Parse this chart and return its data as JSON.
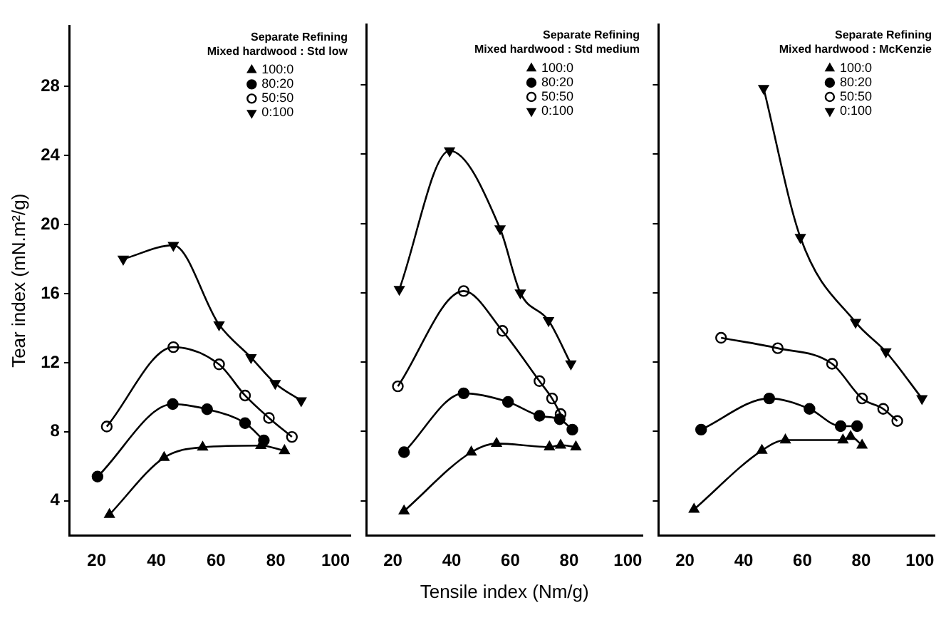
{
  "chart_data": [
    {
      "type": "line",
      "ylabel": "Tear index (mN.m²/g)",
      "legend_title": "Separate Refining\nMixed hardwood : Std low",
      "xlim": [
        11,
        105
      ],
      "xticks": [
        20,
        40,
        60,
        80,
        100
      ],
      "ylim": [
        2,
        31.5
      ],
      "yticks": [
        4,
        8,
        12,
        16,
        20,
        24,
        28
      ],
      "grid": false,
      "legend": "top right",
      "series": [
        {
          "name": "100:0",
          "color": "#000000",
          "marker": "triangle",
          "x": [
            24.3,
            42.6,
            55.5,
            75,
            82.9
          ],
          "values": [
            3.2,
            6.5,
            7.1,
            7.2,
            6.9
          ]
        },
        {
          "name": "80:20",
          "color": "#000000",
          "marker": "circle",
          "x": [
            20.3,
            45.5,
            57,
            69.7,
            76
          ],
          "values": [
            5.4,
            9.6,
            9.3,
            8.5,
            7.5
          ]
        },
        {
          "name": "50:50",
          "color": "#000000",
          "marker": "circle_open",
          "x": [
            23.4,
            45.7,
            61,
            69.7,
            77.7,
            85.4
          ],
          "values": [
            8.3,
            12.9,
            11.9,
            10.1,
            8.8,
            7.7
          ]
        },
        {
          "name": "0:100",
          "color": "#000000",
          "marker": "triangle_down",
          "x": [
            28.9,
            45.7,
            61,
            71.7,
            79.8,
            88.5
          ],
          "values": [
            18.0,
            18.8,
            14.2,
            12.3,
            10.8,
            9.8
          ]
        }
      ]
    },
    {
      "type": "line",
      "xlabel": "Tensile index (Nm/g)",
      "legend_title": "Separate Refining\nMixed hardwood : Std medium",
      "xlim": [
        11,
        105
      ],
      "xticks": [
        20,
        40,
        60,
        80,
        100
      ],
      "ylim": [
        2,
        31.5
      ],
      "yticks": [
        4,
        8,
        12,
        16,
        20,
        24,
        28
      ],
      "grid": false,
      "legend": "top right",
      "tick_labels": "x",
      "series": [
        {
          "name": "100:0",
          "color": "#000000",
          "marker": "triangle",
          "x": [
            23.8,
            46.7,
            55.3,
            73.3,
            77.1,
            82.3
          ],
          "values": [
            3.4,
            6.8,
            7.3,
            7.1,
            7.2,
            7.1
          ]
        },
        {
          "name": "80:20",
          "color": "#000000",
          "marker": "circle",
          "x": [
            23.8,
            44.1,
            59.2,
            69.9,
            76.8,
            81.1
          ],
          "values": [
            6.8,
            10.2,
            9.7,
            8.9,
            8.7,
            8.1
          ]
        },
        {
          "name": "50:50",
          "color": "#000000",
          "marker": "circle_open",
          "x": [
            21.7,
            44.1,
            57.3,
            69.9,
            74.2,
            77.1
          ],
          "values": [
            10.6,
            16.1,
            13.8,
            10.9,
            9.9,
            9.0
          ]
        },
        {
          "name": "0:100",
          "color": "#000000",
          "marker": "triangle_down",
          "x": [
            22.2,
            39.3,
            56.5,
            63.4,
            73,
            80.6
          ],
          "values": [
            16.2,
            24.2,
            19.7,
            16.0,
            14.4,
            11.9
          ]
        }
      ]
    },
    {
      "type": "line",
      "legend_title": "Separate Refining\nMixed hardwood : McKenzie",
      "xlim": [
        11,
        105
      ],
      "xticks": [
        20,
        40,
        60,
        80,
        100
      ],
      "ylim": [
        2,
        31.5
      ],
      "yticks": [
        4,
        8,
        12,
        16,
        20,
        24,
        28
      ],
      "grid": false,
      "legend": "top right",
      "tick_labels": "x",
      "series": [
        {
          "name": "100:0",
          "color": "#000000",
          "marker": "triangle",
          "x": [
            23.1,
            46.2,
            54.2,
            73.8,
            76.4,
            80.3
          ],
          "values": [
            3.5,
            6.9,
            7.5,
            7.5,
            7.7,
            7.2
          ]
        },
        {
          "name": "80:20",
          "color": "#000000",
          "marker": "circle",
          "x": [
            25.5,
            48.7,
            62.4,
            73,
            78.6
          ],
          "values": [
            8.1,
            9.9,
            9.3,
            8.3,
            8.3
          ]
        },
        {
          "name": "50:50",
          "color": "#000000",
          "marker": "circle_open",
          "x": [
            32.3,
            51.6,
            70.1,
            80.3,
            87.5,
            92.3
          ],
          "values": [
            13.4,
            12.8,
            11.9,
            9.9,
            9.3,
            8.6
          ]
        },
        {
          "name": "0:100",
          "color": "#000000",
          "marker": "triangle_down",
          "x": [
            46.8,
            59.3,
            78.1,
            88.4,
            100.7
          ],
          "values": [
            27.8,
            19.2,
            14.3,
            12.6,
            9.9
          ]
        }
      ]
    }
  ]
}
